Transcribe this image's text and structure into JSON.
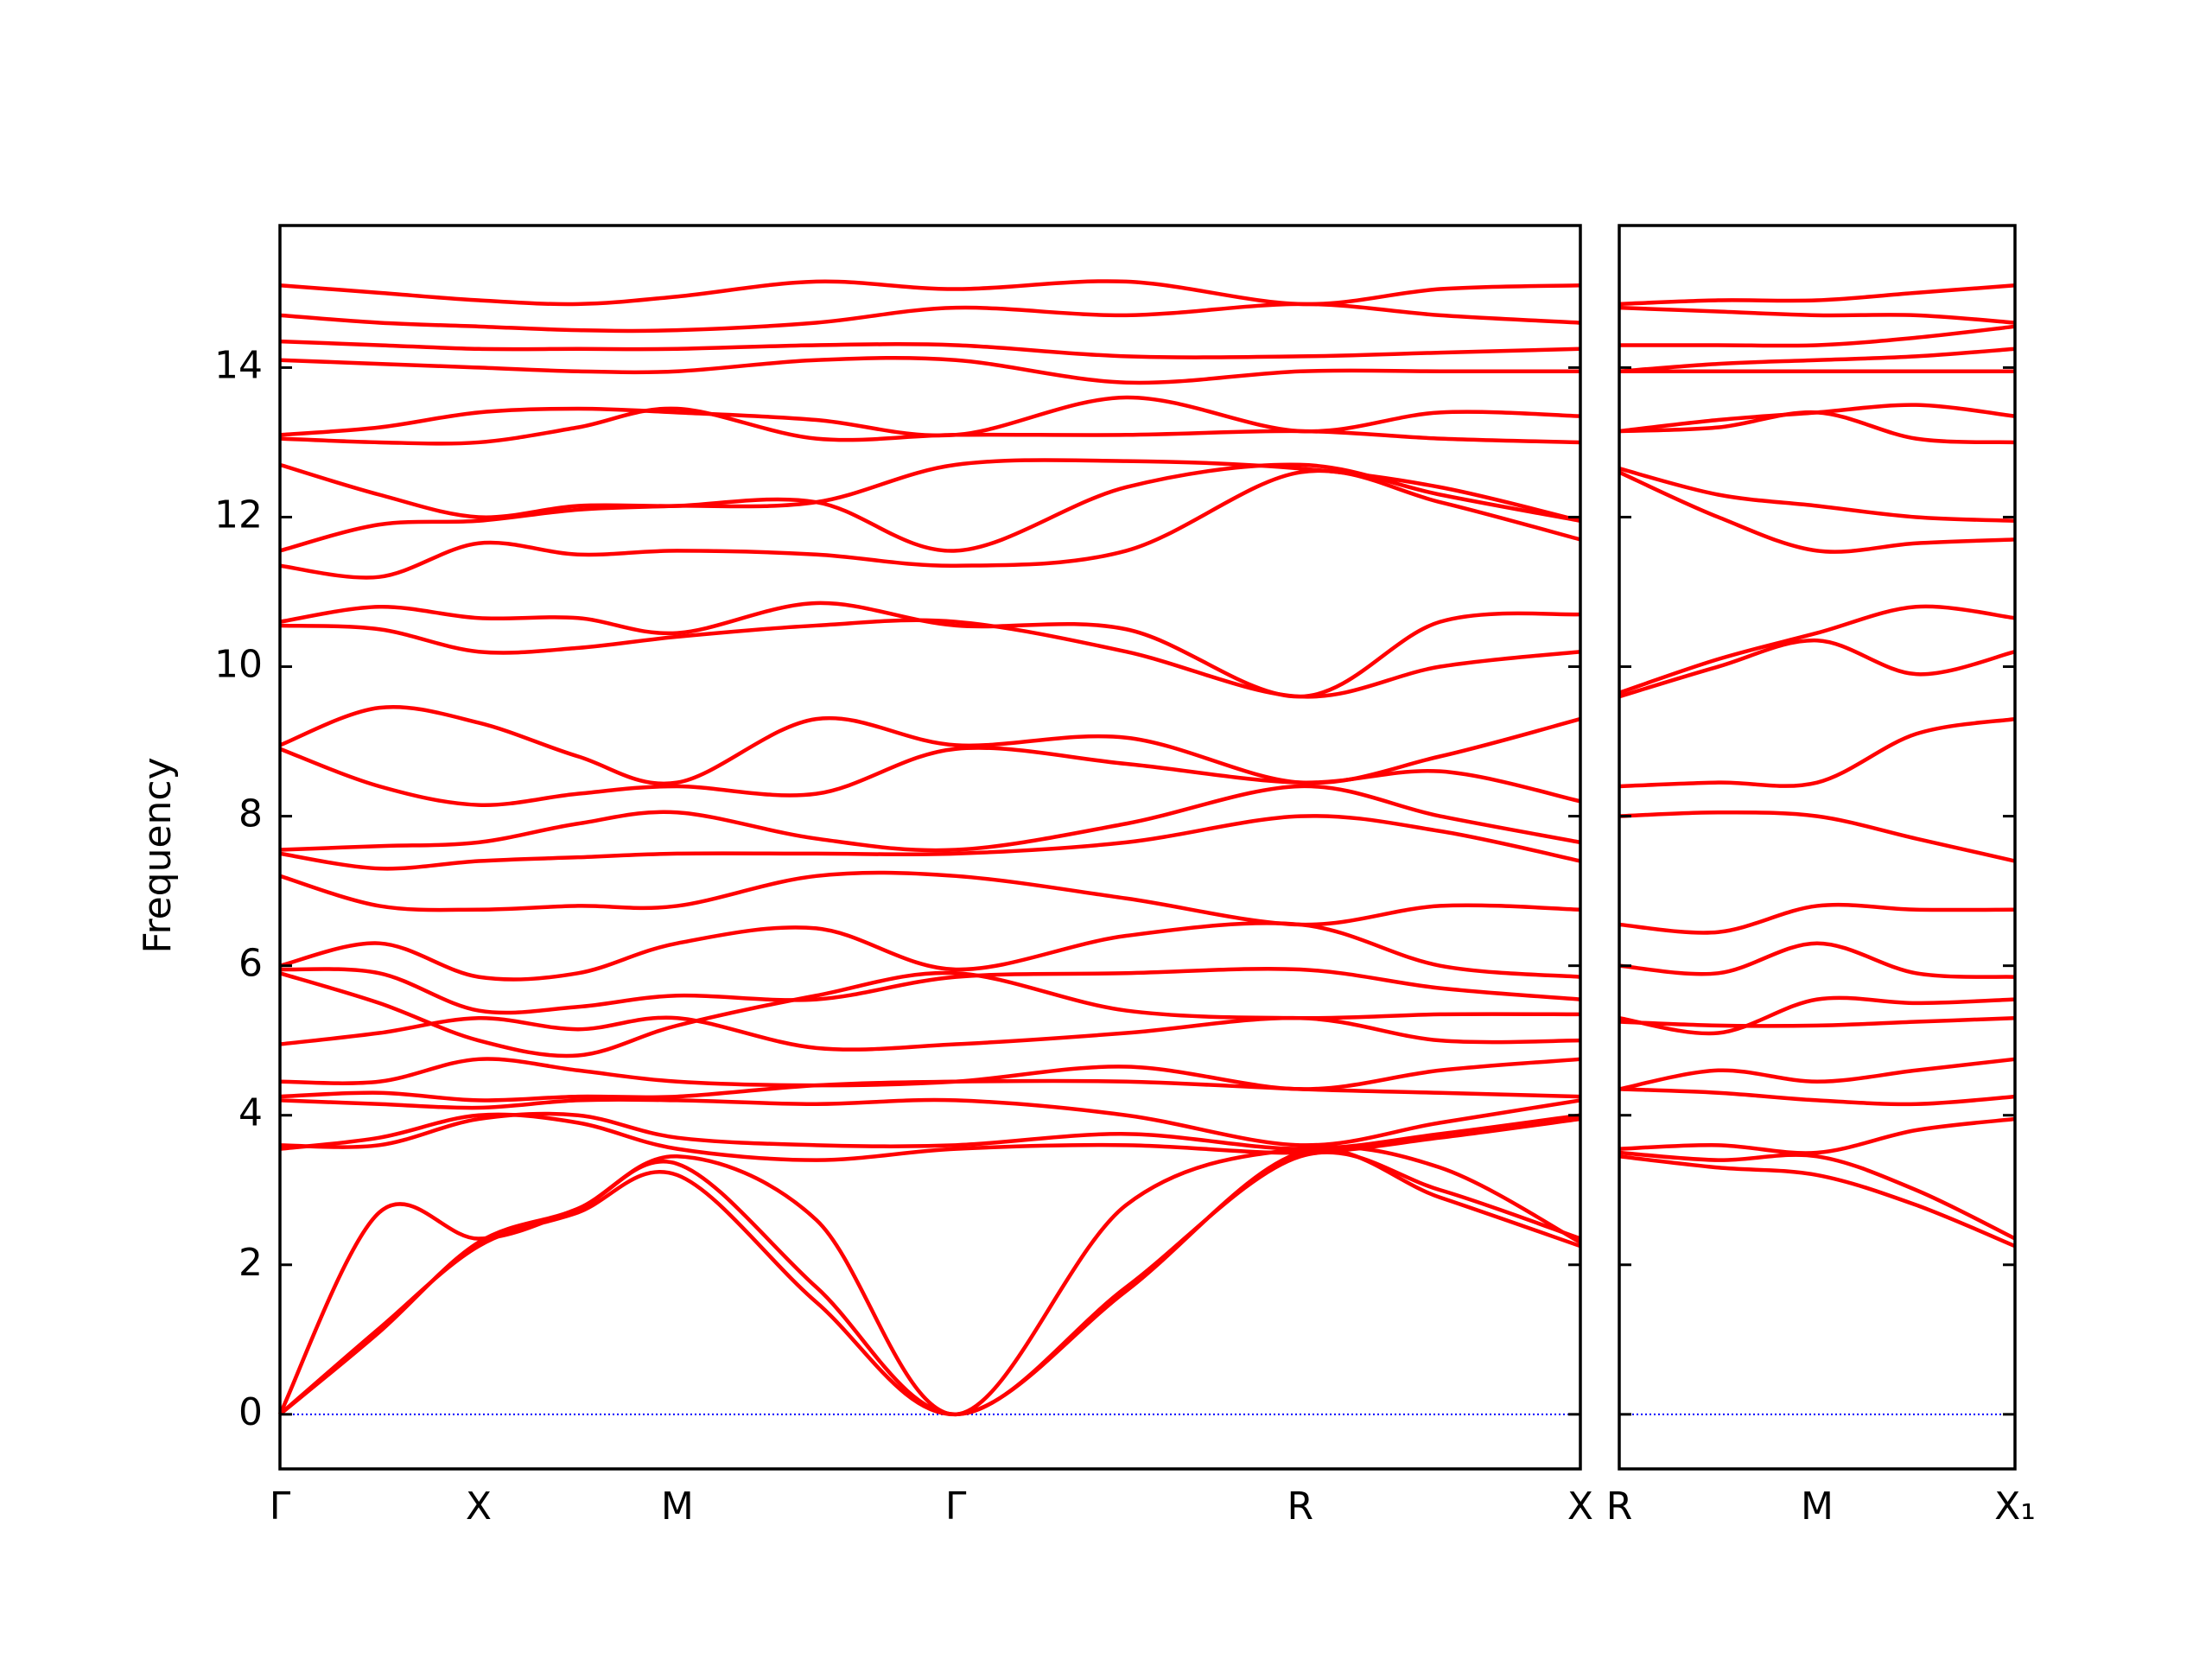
{
  "chart_data": [
    {
      "type": "line",
      "ylabel": "Frequency",
      "color": "#ff0000",
      "zero_line_color": "#0000ff",
      "x": [
        0,
        0.25,
        0.5,
        0.75,
        1.0,
        1.35,
        1.701,
        2.13,
        2.568,
        2.92,
        3.273
      ],
      "xlim": [
        0,
        3.273
      ],
      "xticks": [
        {
          "value": 0,
          "label": "Γ"
        },
        {
          "value": 0.5,
          "label": "X"
        },
        {
          "value": 1.0,
          "label": "M"
        },
        {
          "value": 1.701,
          "label": "Γ"
        },
        {
          "value": 2.568,
          "label": "R"
        },
        {
          "value": 3.273,
          "label": "X"
        }
      ],
      "ylim": [
        -0.73,
        15.9
      ],
      "yticks": [
        0,
        2,
        4,
        6,
        8,
        10,
        12,
        14
      ],
      "series": [
        {
          "values": [
            0,
            2.7,
            2.35,
            2.75,
            3.35,
            1.7,
            0,
            1.7,
            3.45,
            3.0,
            2.35
          ]
        },
        {
          "values": [
            0,
            1.15,
            2.25,
            2.7,
            3.2,
            1.5,
            0,
            1.65,
            3.5,
            2.9,
            2.25
          ]
        },
        {
          "values": [
            0,
            1.1,
            2.3,
            2.75,
            3.45,
            2.6,
            0,
            2.8,
            3.55,
            3.3,
            2.3
          ]
        },
        {
          "values": [
            3.55,
            3.7,
            4.0,
            3.9,
            3.55,
            3.4,
            3.55,
            3.6,
            3.5,
            3.7,
            3.95
          ]
        },
        {
          "values": [
            3.6,
            3.6,
            3.95,
            4.0,
            3.7,
            3.6,
            3.6,
            3.75,
            3.55,
            3.75,
            4.0
          ]
        },
        {
          "values": [
            4.2,
            4.15,
            4.1,
            4.2,
            4.2,
            4.15,
            4.2,
            4.0,
            3.6,
            3.9,
            4.2
          ]
        },
        {
          "values": [
            4.25,
            4.3,
            4.2,
            4.25,
            4.25,
            4.4,
            4.45,
            4.45,
            4.35,
            4.3,
            4.25
          ]
        },
        {
          "values": [
            4.45,
            4.45,
            4.75,
            4.6,
            4.45,
            4.4,
            4.45,
            4.65,
            4.35,
            4.6,
            4.75
          ]
        },
        {
          "values": [
            4.95,
            5.1,
            5.3,
            5.15,
            5.3,
            4.9,
            4.95,
            5.1,
            5.3,
            5.0,
            5.0
          ]
        },
        {
          "values": [
            5.9,
            5.5,
            5.0,
            4.8,
            5.2,
            5.6,
            5.9,
            5.4,
            5.3,
            5.35,
            5.35
          ]
        },
        {
          "values": [
            5.95,
            5.9,
            5.4,
            5.45,
            5.6,
            5.55,
            5.85,
            5.9,
            5.95,
            5.7,
            5.55
          ]
        },
        {
          "values": [
            6.0,
            6.3,
            5.85,
            5.9,
            6.3,
            6.5,
            5.95,
            6.4,
            6.55,
            6.0,
            5.85
          ]
        },
        {
          "values": [
            7.2,
            6.8,
            6.75,
            6.8,
            6.8,
            7.2,
            7.2,
            6.9,
            6.55,
            6.8,
            6.75
          ]
        },
        {
          "values": [
            7.5,
            7.3,
            7.4,
            7.45,
            7.5,
            7.5,
            7.5,
            7.65,
            8.0,
            7.8,
            7.4
          ]
        },
        {
          "values": [
            7.55,
            7.6,
            7.65,
            7.9,
            8.05,
            7.7,
            7.55,
            7.9,
            8.4,
            8.0,
            7.65
          ]
        },
        {
          "values": [
            8.9,
            8.4,
            8.15,
            8.3,
            8.4,
            8.3,
            8.9,
            8.7,
            8.45,
            8.6,
            8.2
          ]
        },
        {
          "values": [
            8.95,
            9.45,
            9.25,
            8.8,
            8.45,
            9.3,
            8.95,
            9.05,
            8.45,
            8.8,
            9.3
          ]
        },
        {
          "values": [
            10.55,
            10.5,
            10.2,
            10.25,
            10.4,
            10.55,
            10.6,
            10.2,
            9.6,
            10.0,
            10.2
          ]
        },
        {
          "values": [
            10.6,
            10.8,
            10.65,
            10.65,
            10.45,
            10.85,
            10.55,
            10.5,
            9.6,
            10.6,
            10.7
          ]
        },
        {
          "values": [
            11.35,
            11.2,
            11.65,
            11.5,
            11.55,
            11.5,
            11.35,
            11.55,
            12.6,
            12.2,
            11.7
          ]
        },
        {
          "values": [
            11.55,
            11.9,
            11.95,
            12.1,
            12.15,
            12.2,
            11.55,
            12.4,
            12.7,
            12.3,
            11.95
          ]
        },
        {
          "values": [
            12.7,
            12.3,
            12.0,
            12.15,
            12.15,
            12.2,
            12.7,
            12.75,
            12.65,
            12.4,
            11.95
          ]
        },
        {
          "values": [
            13.1,
            13.2,
            13.4,
            13.45,
            13.4,
            13.3,
            13.1,
            13.6,
            13.15,
            13.4,
            13.35
          ]
        },
        {
          "values": [
            13.05,
            13.0,
            13.0,
            13.2,
            13.45,
            13.05,
            13.1,
            13.1,
            13.15,
            13.05,
            13.0
          ]
        },
        {
          "values": [
            14.1,
            14.05,
            14.0,
            13.95,
            13.95,
            14.1,
            14.1,
            13.8,
            13.95,
            13.95,
            13.95
          ]
        },
        {
          "values": [
            14.35,
            14.3,
            14.25,
            14.25,
            14.25,
            14.3,
            14.3,
            14.15,
            14.15,
            14.2,
            14.25
          ]
        },
        {
          "values": [
            14.7,
            14.6,
            14.55,
            14.5,
            14.5,
            14.6,
            14.8,
            14.7,
            14.85,
            14.7,
            14.6
          ]
        },
        {
          "values": [
            15.1,
            15.0,
            14.9,
            14.85,
            14.95,
            15.15,
            15.05,
            15.15,
            14.85,
            15.05,
            15.1
          ]
        }
      ]
    },
    {
      "type": "line",
      "color": "#ff0000",
      "zero_line_color": "#0000ff",
      "x": [
        0,
        0.25,
        0.5,
        0.75,
        1.0
      ],
      "xlim": [
        0,
        1.0
      ],
      "xticks": [
        {
          "value": 0,
          "label": "R"
        },
        {
          "value": 0.5,
          "label": "M"
        },
        {
          "value": 1.0,
          "label": "X₁"
        }
      ],
      "ylim": [
        -0.73,
        15.9
      ],
      "series": [
        {
          "values": [
            3.45,
            3.3,
            3.2,
            2.8,
            2.25
          ]
        },
        {
          "values": [
            3.5,
            3.4,
            3.45,
            3.0,
            2.35
          ]
        },
        {
          "values": [
            3.55,
            3.6,
            3.5,
            3.8,
            3.95
          ]
        },
        {
          "values": [
            4.35,
            4.6,
            4.45,
            4.6,
            4.75
          ]
        },
        {
          "values": [
            4.35,
            4.3,
            4.2,
            4.15,
            4.25
          ]
        },
        {
          "values": [
            5.25,
            5.2,
            5.2,
            5.25,
            5.3
          ]
        },
        {
          "values": [
            5.3,
            5.1,
            5.55,
            5.5,
            5.55
          ]
        },
        {
          "values": [
            6.0,
            5.9,
            6.3,
            5.9,
            5.85
          ]
        },
        {
          "values": [
            6.55,
            6.45,
            6.8,
            6.75,
            6.75
          ]
        },
        {
          "values": [
            8.0,
            8.05,
            8.0,
            7.7,
            7.4
          ]
        },
        {
          "values": [
            8.4,
            8.45,
            8.45,
            9.1,
            9.3
          ]
        },
        {
          "values": [
            9.6,
            10.0,
            10.35,
            9.9,
            10.2
          ]
        },
        {
          "values": [
            9.65,
            10.1,
            10.45,
            10.8,
            10.65
          ]
        },
        {
          "values": [
            12.6,
            12.0,
            11.55,
            11.65,
            11.7
          ]
        },
        {
          "values": [
            12.65,
            12.3,
            12.15,
            12.0,
            11.95
          ]
        },
        {
          "values": [
            13.15,
            13.3,
            13.4,
            13.5,
            13.35
          ]
        },
        {
          "values": [
            13.15,
            13.2,
            13.4,
            13.05,
            13.0
          ]
        },
        {
          "values": [
            13.95,
            14.05,
            14.1,
            14.15,
            14.25
          ]
        },
        {
          "values": [
            13.95,
            13.95,
            13.95,
            13.95,
            13.95
          ]
        },
        {
          "values": [
            14.3,
            14.3,
            14.3,
            14.4,
            14.55
          ]
        },
        {
          "values": [
            14.8,
            14.75,
            14.7,
            14.7,
            14.6
          ]
        },
        {
          "values": [
            14.85,
            14.9,
            14.9,
            15.0,
            15.1
          ]
        }
      ]
    }
  ]
}
